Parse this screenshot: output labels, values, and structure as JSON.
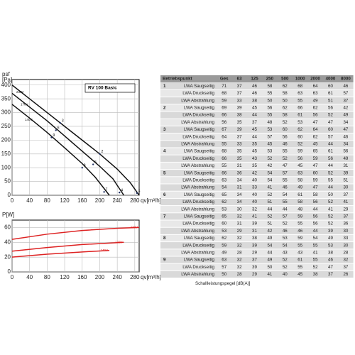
{
  "chart_data": [
    {
      "type": "line",
      "ylabel": "psf",
      "yunit": "[Pa]",
      "xlabel": "qv[m³/h]",
      "legend_box": "RV 100 Basic",
      "grid": true,
      "xlim": [
        0,
        290
      ],
      "ylim": [
        0,
        420
      ],
      "xticks": [
        0,
        40,
        80,
        120,
        160,
        200,
        240,
        280
      ],
      "yticks": [
        0,
        50,
        100,
        150,
        200,
        250,
        300,
        350,
        400
      ],
      "series": [
        {
          "name": "230V",
          "color": "#111",
          "x": [
            0,
            40,
            80,
            120,
            160,
            200,
            240,
            270,
            290
          ],
          "values": [
            400,
            350,
            300,
            250,
            200,
            150,
            95,
            45,
            0
          ]
        },
        {
          "name": "170V",
          "color": "#111",
          "x": [
            0,
            40,
            80,
            120,
            160,
            200,
            230,
            255
          ],
          "values": [
            370,
            320,
            270,
            215,
            160,
            105,
            60,
            0
          ]
        },
        {
          "name": "140V",
          "color": "#111",
          "x": [
            0,
            40,
            80,
            120,
            160,
            190,
            222
          ],
          "values": [
            330,
            280,
            228,
            172,
            115,
            65,
            0
          ]
        }
      ],
      "points": [
        {
          "label": "1",
          "x": 285,
          "y": 8
        },
        {
          "label": "2",
          "x": 200,
          "y": 150
        },
        {
          "label": "3",
          "x": 110,
          "y": 262
        },
        {
          "label": "4",
          "x": 245,
          "y": 10
        },
        {
          "label": "5",
          "x": 185,
          "y": 112
        },
        {
          "label": "6",
          "x": 100,
          "y": 236
        },
        {
          "label": "7",
          "x": 210,
          "y": 12
        },
        {
          "label": "8",
          "x": 160,
          "y": 100
        },
        {
          "label": "9",
          "x": 90,
          "y": 210
        }
      ]
    },
    {
      "type": "line",
      "ylabel": "P[W]",
      "xlabel": "qv[m³/h]",
      "grid": true,
      "xlim": [
        0,
        290
      ],
      "ylim": [
        0,
        70
      ],
      "xticks": [
        0,
        40,
        80,
        120,
        160,
        200,
        240,
        280
      ],
      "yticks": [
        0,
        20,
        40,
        60
      ],
      "series": [
        {
          "name": "230V",
          "color": "#d22",
          "x": [
            0,
            80,
            160,
            240,
            290
          ],
          "values": [
            44,
            51,
            56,
            59,
            60
          ]
        },
        {
          "name": "170V",
          "color": "#d22",
          "x": [
            0,
            80,
            160,
            255
          ],
          "values": [
            28,
            33,
            37,
            40
          ]
        },
        {
          "name": "140V",
          "color": "#d22",
          "x": [
            0,
            80,
            160,
            222
          ],
          "values": [
            20,
            24,
            27,
            29
          ]
        }
      ]
    }
  ],
  "table": {
    "header": [
      "Betriebspunkt",
      "Ges",
      "63",
      "125",
      "250",
      "500",
      "1000",
      "2000",
      "4000",
      "8000"
    ],
    "groups": [
      {
        "point": "1",
        "rows": [
          {
            "label": "LWA Saugseitig",
            "values": [
              71,
              37,
              46,
              58,
              62,
              68,
              64,
              60,
              46
            ]
          },
          {
            "label": "LWA Druckseitig",
            "values": [
              68,
              37,
              46,
              55,
              58,
              63,
              63,
              61,
              57
            ]
          },
          {
            "label": "LWA Abstrahlung",
            "values": [
              59,
              33,
              38,
              50,
              50,
              55,
              49,
              51,
              37
            ]
          }
        ]
      },
      {
        "point": "2",
        "rows": [
          {
            "label": "LWA Saugseitig",
            "values": [
              69,
              39,
              45,
              56,
              62,
              66,
              62,
              56,
              42
            ]
          },
          {
            "label": "LWA Druckseitig",
            "values": [
              66,
              38,
              44,
              55,
              58,
              61,
              56,
              52,
              49
            ]
          },
          {
            "label": "LWA Abstrahlung",
            "values": [
              56,
              35,
              37,
              48,
              52,
              53,
              47,
              47,
              34
            ]
          }
        ]
      },
      {
        "point": "3",
        "rows": [
          {
            "label": "LWA Saugseitig",
            "values": [
              67,
              39,
              45,
              53,
              60,
              62,
              64,
              60,
              47
            ]
          },
          {
            "label": "LWA Druckseitig",
            "values": [
              64,
              37,
              44,
              57,
              56,
              60,
              62,
              57,
              46
            ]
          },
          {
            "label": "LWA Abstrahlung",
            "values": [
              55,
              33,
              35,
              45,
              46,
              52,
              45,
              44,
              34
            ]
          }
        ]
      },
      {
        "point": "4",
        "rows": [
          {
            "label": "LWA Saugseitig",
            "values": [
              68,
              35,
              45,
              53,
              55,
              59,
              65,
              61,
              56
            ]
          },
          {
            "label": "LWA Druckseitig",
            "values": [
              66,
              35,
              43,
              52,
              52,
              56,
              59,
              56,
              49
            ]
          },
          {
            "label": "LWA Abstrahlung",
            "values": [
              55,
              31,
              35,
              42,
              47,
              45,
              47,
              44,
              31
            ]
          }
        ]
      },
      {
        "point": "5",
        "rows": [
          {
            "label": "LWA Saugseitig",
            "values": [
              66,
              36,
              42,
              54,
              57,
              63,
              60,
              52,
              39
            ]
          },
          {
            "label": "LWA Druckseitig",
            "values": [
              63,
              34,
              40,
              54,
              55,
              58,
              59,
              55,
              51
            ]
          },
          {
            "label": "LWA Abstrahlung",
            "values": [
              54,
              31,
              33,
              41,
              46,
              49,
              47,
              44,
              30
            ]
          }
        ]
      },
      {
        "point": "6",
        "rows": [
          {
            "label": "LWA Saugseitig",
            "values": [
              65,
              34,
              40,
              52,
              54,
              61,
              58,
              50,
              37
            ]
          },
          {
            "label": "LWA Druckseitig",
            "values": [
              62,
              34,
              40,
              51,
              55,
              58,
              56,
              52,
              41
            ]
          },
          {
            "label": "LWA Abstrahlung",
            "values": [
              53,
              30,
              32,
              44,
              44,
              48,
              44,
              41,
              29
            ]
          }
        ]
      },
      {
        "point": "7",
        "rows": [
          {
            "label": "LWA Saugseitig",
            "values": [
              65,
              32,
              41,
              52,
              57,
              59,
              56,
              52,
              37
            ]
          },
          {
            "label": "LWA Druckseitig",
            "values": [
              60,
              31,
              39,
              51,
              52,
              55,
              56,
              52,
              36
            ]
          },
          {
            "label": "LWA Abstrahlung",
            "values": [
              53,
              29,
              31,
              42,
              46,
              46,
              44,
              39,
              30
            ]
          }
        ]
      },
      {
        "point": "8",
        "rows": [
          {
            "label": "LWA Saugseitig",
            "values": [
              62,
              32,
              38,
              49,
              53,
              59,
              54,
              49,
              33
            ]
          },
          {
            "label": "LWA Druckseitig",
            "values": [
              59,
              32,
              39,
              54,
              54,
              55,
              55,
              53,
              30
            ]
          },
          {
            "label": "LWA Abstrahlung",
            "values": [
              49,
              28,
              29,
              44,
              43,
              43,
              41,
              38,
              28
            ]
          }
        ]
      },
      {
        "point": "9",
        "rows": [
          {
            "label": "LWA Saugseitig",
            "values": [
              63,
              32,
              37,
              49,
              52,
              61,
              55,
              46,
              32
            ]
          },
          {
            "label": "LWA Druckseitig",
            "values": [
              57,
              32,
              39,
              50,
              52,
              55,
              52,
              47,
              37
            ]
          },
          {
            "label": "LWA Abstrahlung",
            "values": [
              50,
              28,
              29,
              41,
              40,
              45,
              38,
              37,
              26
            ]
          }
        ]
      }
    ],
    "caption": "Schallleistungspegel [dB(A)]"
  }
}
